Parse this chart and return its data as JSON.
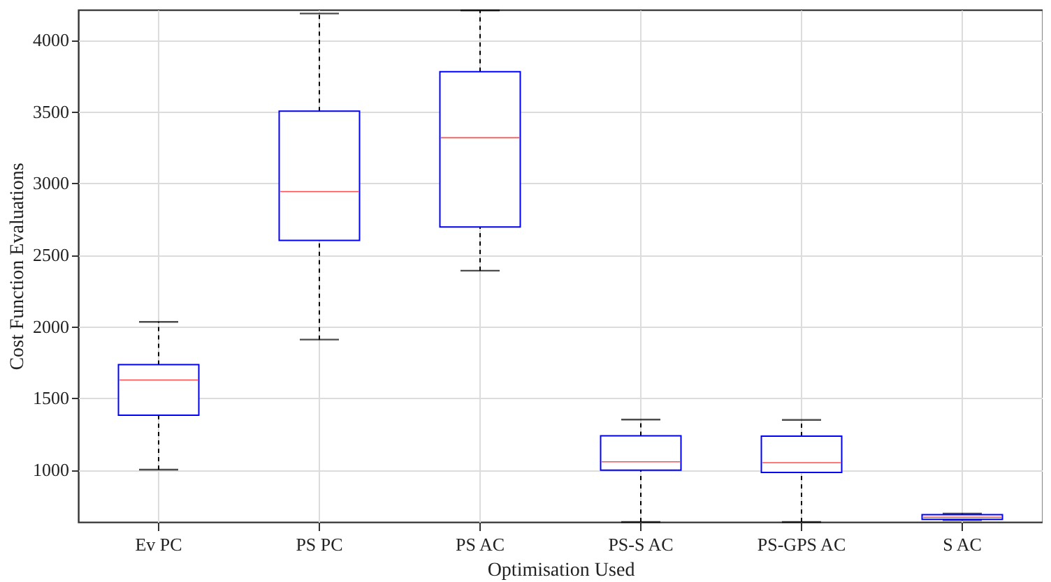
{
  "chart_data": {
    "type": "box",
    "xlabel": "Optimisation Used",
    "ylabel": "Cost Function Evaluations",
    "categories": [
      "Ev PC",
      "PS PC",
      "PS AC",
      "PS-S AC",
      "PS-GPS AC",
      "S AC"
    ],
    "series": [
      {
        "color": "#0000ff",
        "boxes": [
          {
            "low": 1000,
            "q1": 1380,
            "median": 1626,
            "q3": 1733,
            "high": 2032
          },
          {
            "low": 1908,
            "q1": 2600,
            "median": 2941,
            "q3": 3503,
            "high": 4184
          },
          {
            "low": 2389,
            "q1": 2694,
            "median": 3317,
            "q3": 3778,
            "high": 4205
          },
          {
            "low": 635,
            "q1": 997,
            "median": 1055,
            "q3": 1237,
            "high": 1350
          },
          {
            "low": 635,
            "q1": 981,
            "median": 1049,
            "q3": 1234,
            "high": 1347
          },
          {
            "low": 648,
            "q1": 653,
            "median": 668,
            "q3": 686,
            "high": 694
          }
        ]
      }
    ],
    "ylim": [
      635,
      4210
    ],
    "yticks": [
      1000,
      1500,
      2000,
      2500,
      3000,
      3500,
      4000
    ],
    "grid": true
  }
}
